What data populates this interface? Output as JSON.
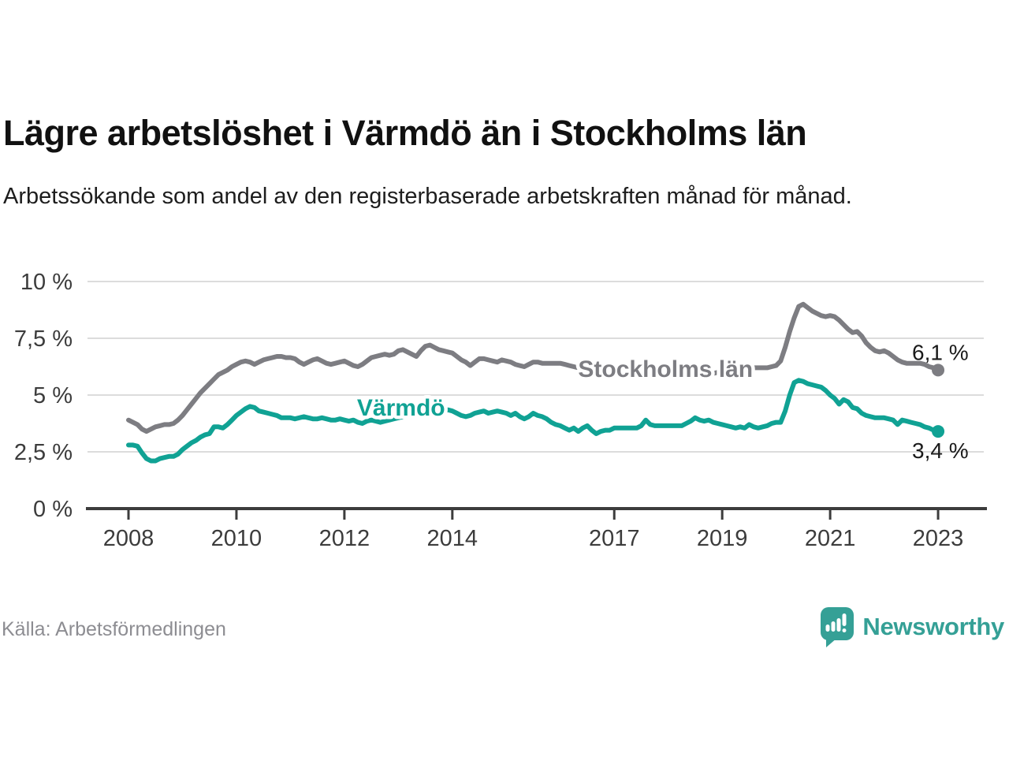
{
  "header": {
    "title": "Lägre arbetslöshet i Värmdö än i Stockholms län",
    "subtitle": "Arbetssökande som andel av den registerbaserade arbetskraften månad för månad."
  },
  "colors": {
    "stockholm": "#7d7d82",
    "varmdo": "#10a294",
    "grid": "#dcdcdc",
    "axis": "#3c3c3c",
    "text": "#1a1a1a",
    "muted": "#8d8d92",
    "logo": "#35a096"
  },
  "chart_data": {
    "type": "line",
    "unit": "%",
    "frequency": "monthly",
    "x_start_year": 2008,
    "ylim": [
      0,
      10
    ],
    "grid": true,
    "y_ticks": [
      {
        "value": 10,
        "label": "10 %"
      },
      {
        "value": 7.5,
        "label": "7,5 %"
      },
      {
        "value": 5,
        "label": "5 %"
      },
      {
        "value": 2.5,
        "label": "2,5 %"
      },
      {
        "value": 0,
        "label": "0 %"
      }
    ],
    "x_ticks": [
      {
        "year": 2008,
        "label": "2008"
      },
      {
        "year": 2010,
        "label": "2010"
      },
      {
        "year": 2012,
        "label": "2012"
      },
      {
        "year": 2014,
        "label": "2014"
      },
      {
        "year": 2017,
        "label": "2017"
      },
      {
        "year": 2019,
        "label": "2019"
      },
      {
        "year": 2021,
        "label": "2021"
      },
      {
        "year": 2023,
        "label": "2023"
      }
    ],
    "series": [
      {
        "id": "stockholms-lan",
        "name": "Stockholms län",
        "color_key": "stockholm",
        "end_label": "6,1 %",
        "end_label_offset": {
          "dx": -33,
          "dy": -13
        },
        "label_at": {
          "year": 2017.95,
          "value": 6.18
        },
        "values": [
          3.9,
          3.8,
          3.7,
          3.5,
          3.4,
          3.5,
          3.6,
          3.65,
          3.7,
          3.7,
          3.75,
          3.9,
          4.1,
          4.35,
          4.6,
          4.85,
          5.1,
          5.3,
          5.5,
          5.7,
          5.9,
          6.0,
          6.1,
          6.25,
          6.35,
          6.45,
          6.5,
          6.45,
          6.35,
          6.45,
          6.55,
          6.6,
          6.65,
          6.7,
          6.7,
          6.65,
          6.65,
          6.6,
          6.45,
          6.35,
          6.45,
          6.55,
          6.6,
          6.5,
          6.4,
          6.35,
          6.4,
          6.45,
          6.5,
          6.4,
          6.3,
          6.25,
          6.35,
          6.5,
          6.65,
          6.7,
          6.75,
          6.8,
          6.75,
          6.8,
          6.95,
          7.0,
          6.9,
          6.8,
          6.7,
          6.95,
          7.15,
          7.2,
          7.1,
          7.0,
          6.95,
          6.9,
          6.85,
          6.7,
          6.55,
          6.45,
          6.3,
          6.45,
          6.6,
          6.6,
          6.55,
          6.5,
          6.45,
          6.55,
          6.5,
          6.45,
          6.35,
          6.3,
          6.25,
          6.35,
          6.45,
          6.45,
          6.4,
          6.4,
          6.4,
          6.4,
          6.4,
          6.35,
          6.3,
          6.25,
          6.2,
          6.15,
          6.2,
          6.2,
          6.15,
          6.1,
          6.1,
          6.1,
          6.1,
          6.05,
          6.0,
          6.0,
          5.95,
          6.0,
          6.05,
          6.0,
          5.95,
          5.95,
          6.0,
          6.0,
          6.0,
          5.95,
          5.9,
          5.9,
          5.85,
          5.9,
          5.95,
          5.95,
          5.9,
          5.9,
          5.95,
          6.0,
          6.05,
          6.05,
          6.1,
          6.1,
          6.15,
          6.15,
          6.2,
          6.2,
          6.2,
          6.2,
          6.2,
          6.25,
          6.3,
          6.5,
          7.1,
          7.8,
          8.4,
          8.9,
          9.0,
          8.85,
          8.7,
          8.6,
          8.5,
          8.45,
          8.5,
          8.45,
          8.3,
          8.1,
          7.9,
          7.75,
          7.8,
          7.6,
          7.3,
          7.1,
          6.95,
          6.9,
          6.95,
          6.85,
          6.7,
          6.55,
          6.45,
          6.4,
          6.4,
          6.4,
          6.4,
          6.35,
          6.25,
          6.2,
          6.1
        ]
      },
      {
        "id": "varmdo",
        "name": "Värmdö",
        "color_key": "varmdo",
        "end_label": "3,4 %",
        "end_label_offset": {
          "dx": -33,
          "dy": 34
        },
        "label_at": {
          "year": 2013.05,
          "value": 4.48
        },
        "values": [
          2.8,
          2.8,
          2.75,
          2.45,
          2.2,
          2.1,
          2.1,
          2.2,
          2.25,
          2.3,
          2.3,
          2.4,
          2.6,
          2.75,
          2.9,
          3.0,
          3.15,
          3.25,
          3.3,
          3.6,
          3.6,
          3.55,
          3.7,
          3.9,
          4.1,
          4.25,
          4.4,
          4.5,
          4.45,
          4.3,
          4.25,
          4.2,
          4.15,
          4.1,
          4.0,
          4.0,
          4.0,
          3.95,
          4.0,
          4.05,
          4.0,
          3.95,
          3.95,
          4.0,
          3.95,
          3.9,
          3.9,
          3.95,
          3.9,
          3.85,
          3.9,
          3.8,
          3.75,
          3.85,
          3.9,
          3.85,
          3.8,
          3.85,
          3.9,
          3.95,
          4.0,
          4.05,
          4.1,
          4.05,
          4.1,
          4.15,
          4.25,
          4.3,
          4.25,
          4.2,
          4.3,
          4.35,
          4.3,
          4.2,
          4.1,
          4.05,
          4.1,
          4.2,
          4.25,
          4.3,
          4.2,
          4.25,
          4.3,
          4.25,
          4.2,
          4.1,
          4.2,
          4.05,
          3.95,
          4.05,
          4.2,
          4.1,
          4.05,
          3.95,
          3.8,
          3.7,
          3.65,
          3.55,
          3.45,
          3.55,
          3.4,
          3.55,
          3.65,
          3.45,
          3.3,
          3.4,
          3.45,
          3.45,
          3.55,
          3.55,
          3.55,
          3.55,
          3.55,
          3.55,
          3.65,
          3.9,
          3.7,
          3.65,
          3.65,
          3.65,
          3.65,
          3.65,
          3.65,
          3.65,
          3.75,
          3.85,
          4.0,
          3.9,
          3.85,
          3.9,
          3.8,
          3.75,
          3.7,
          3.65,
          3.6,
          3.55,
          3.6,
          3.55,
          3.7,
          3.6,
          3.55,
          3.6,
          3.65,
          3.75,
          3.8,
          3.8,
          4.3,
          5.0,
          5.55,
          5.65,
          5.6,
          5.5,
          5.45,
          5.4,
          5.35,
          5.2,
          5.0,
          4.85,
          4.6,
          4.8,
          4.7,
          4.45,
          4.4,
          4.2,
          4.1,
          4.05,
          4.0,
          4.0,
          4.0,
          3.95,
          3.9,
          3.7,
          3.9,
          3.85,
          3.8,
          3.75,
          3.7,
          3.6,
          3.55,
          3.45,
          3.4
        ]
      }
    ]
  },
  "footer": {
    "source": "Källa: Arbetsförmedlingen",
    "brand": "Newsworthy"
  }
}
